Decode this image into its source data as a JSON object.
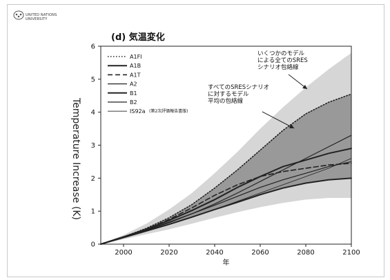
{
  "header": {
    "logo_lines": [
      "United Nations",
      "University"
    ]
  },
  "chart_data": {
    "type": "line",
    "title": "(d) 気温変化",
    "xlabel": "年",
    "ylabel": "Temperature Increase (K)",
    "xlim": [
      1990,
      2100
    ],
    "ylim": [
      0,
      6
    ],
    "x_ticks": [
      2000,
      2020,
      2040,
      2060,
      2080,
      2100
    ],
    "y_ticks": [
      0,
      1,
      2,
      3,
      4,
      5,
      6
    ],
    "legend": {
      "placement": "top-left",
      "entries": [
        {
          "label": "A1FI",
          "style": "dotted"
        },
        {
          "label": "A1B",
          "style": "solid-thick"
        },
        {
          "label": "A1T",
          "style": "dashed"
        },
        {
          "label": "A2",
          "style": "solid"
        },
        {
          "label": "B1",
          "style": "solid-thick"
        },
        {
          "label": "B2",
          "style": "solid"
        },
        {
          "label": "IS92a",
          "sub": "(第2次評価報告書版)",
          "style": "solid-thin"
        }
      ]
    },
    "bands": [
      {
        "name": "いくつかのモデルによる全てのSRES シナリオ包絡線",
        "color": "#d6d6d6",
        "x": [
          1990,
          2000,
          2010,
          2020,
          2030,
          2040,
          2050,
          2060,
          2070,
          2080,
          2090,
          2100
        ],
        "upper": [
          0.0,
          0.28,
          0.62,
          1.05,
          1.55,
          2.15,
          2.8,
          3.5,
          4.15,
          4.75,
          5.3,
          5.8
        ],
        "lower": [
          0.0,
          0.15,
          0.3,
          0.45,
          0.62,
          0.8,
          0.97,
          1.12,
          1.25,
          1.35,
          1.4,
          1.4
        ]
      },
      {
        "name": "すべてのSRESシナリオに対するモデル平均の包絡線",
        "color": "#999999",
        "x": [
          1990,
          2000,
          2010,
          2020,
          2030,
          2040,
          2050,
          2060,
          2070,
          2080,
          2090,
          2100
        ],
        "upper": [
          0.0,
          0.22,
          0.48,
          0.8,
          1.2,
          1.7,
          2.25,
          2.85,
          3.45,
          3.95,
          4.3,
          4.55
        ],
        "lower": [
          0.0,
          0.2,
          0.4,
          0.6,
          0.82,
          1.05,
          1.27,
          1.5,
          1.7,
          1.85,
          1.95,
          2.0
        ]
      }
    ],
    "series": [
      {
        "name": "A1FI",
        "style": "dotted",
        "x": [
          1990,
          2000,
          2010,
          2020,
          2030,
          2040,
          2050,
          2060,
          2070,
          2080,
          2090,
          2100
        ],
        "values": [
          0.0,
          0.22,
          0.48,
          0.8,
          1.2,
          1.7,
          2.25,
          2.85,
          3.45,
          3.95,
          4.3,
          4.55
        ]
      },
      {
        "name": "A1B",
        "style": "solid-thick",
        "x": [
          1990,
          2000,
          2010,
          2020,
          2030,
          2040,
          2050,
          2060,
          2070,
          2080,
          2090,
          2100
        ],
        "values": [
          0.0,
          0.22,
          0.45,
          0.72,
          1.02,
          1.35,
          1.72,
          2.05,
          2.35,
          2.55,
          2.75,
          2.9
        ]
      },
      {
        "name": "A1T",
        "style": "dashed",
        "x": [
          1990,
          2000,
          2010,
          2020,
          2030,
          2040,
          2050,
          2060,
          2070,
          2080,
          2090,
          2100
        ],
        "values": [
          0.0,
          0.22,
          0.45,
          0.75,
          1.1,
          1.48,
          1.8,
          2.05,
          2.2,
          2.3,
          2.4,
          2.45
        ]
      },
      {
        "name": "A2",
        "style": "solid",
        "x": [
          1990,
          2000,
          2010,
          2020,
          2030,
          2040,
          2050,
          2060,
          2070,
          2080,
          2090,
          2100
        ],
        "values": [
          0.0,
          0.2,
          0.42,
          0.65,
          0.92,
          1.22,
          1.55,
          1.9,
          2.25,
          2.6,
          2.95,
          3.3
        ]
      },
      {
        "name": "B1",
        "style": "solid-thick",
        "x": [
          1990,
          2000,
          2010,
          2020,
          2030,
          2040,
          2050,
          2060,
          2070,
          2080,
          2090,
          2100
        ],
        "values": [
          0.0,
          0.2,
          0.4,
          0.6,
          0.82,
          1.05,
          1.27,
          1.5,
          1.7,
          1.85,
          1.95,
          2.0
        ]
      },
      {
        "name": "B2",
        "style": "solid",
        "x": [
          1990,
          2000,
          2010,
          2020,
          2030,
          2040,
          2050,
          2060,
          2070,
          2080,
          2090,
          2100
        ],
        "values": [
          0.0,
          0.21,
          0.43,
          0.67,
          0.92,
          1.18,
          1.45,
          1.72,
          1.95,
          2.15,
          2.35,
          2.5
        ]
      },
      {
        "name": "IS92a",
        "style": "solid-thin",
        "x": [
          1990,
          2000,
          2010,
          2020,
          2030,
          2040,
          2050,
          2060,
          2070,
          2080,
          2090,
          2100
        ],
        "values": [
          0.0,
          0.2,
          0.4,
          0.6,
          0.82,
          1.05,
          1.3,
          1.55,
          1.8,
          2.05,
          2.3,
          2.6
        ]
      }
    ],
    "annotations": [
      {
        "lines": [
          "いくつかのモデル",
          "による全てのSRES",
          "シナリオ包絡線"
        ]
      },
      {
        "lines": [
          "すべてのSRESシナリオ",
          "に対するモデル",
          "平均の包絡線"
        ]
      }
    ]
  }
}
